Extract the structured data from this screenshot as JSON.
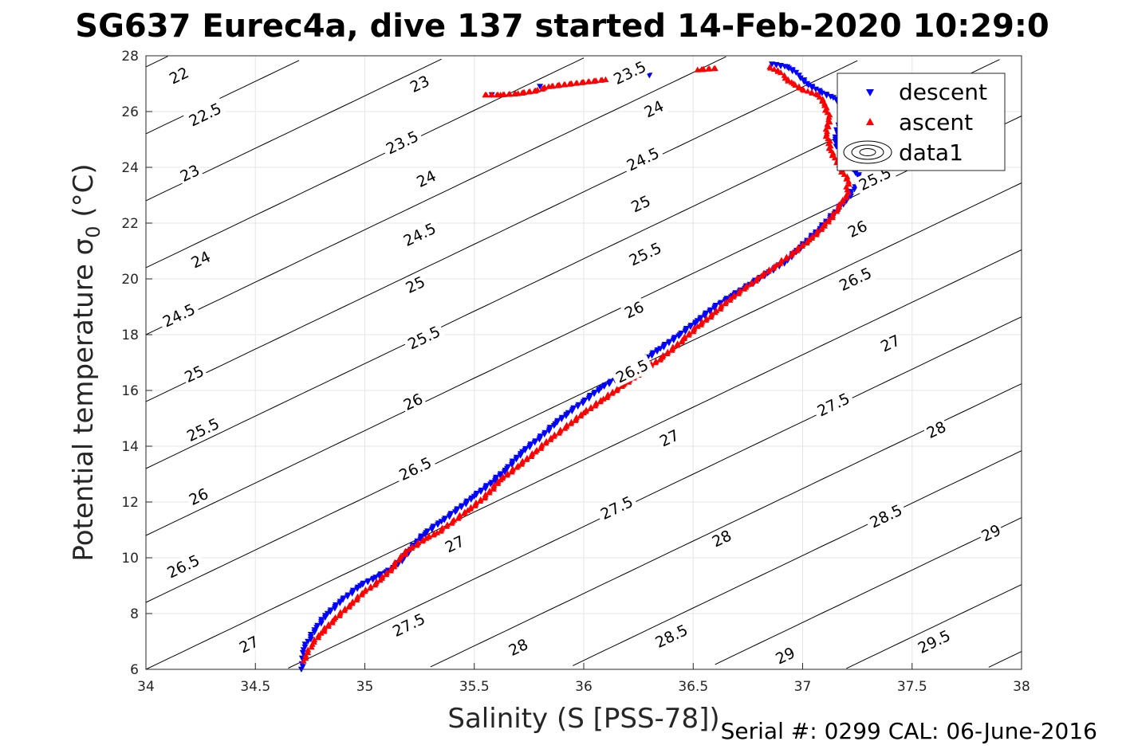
{
  "chart_data": {
    "type": "scatter",
    "title": "SG637 Eurec4a, dive 137 started 14-Feb-2020 10:29:0",
    "xlabel": "Salinity (S [PSS-78])",
    "ylabel_main": "Potential temperature ",
    "ylabel_sigma": "σ",
    "ylabel_sub": "0",
    "ylabel_unit": " (°C)",
    "xlim": [
      34,
      38
    ],
    "ylim": [
      6,
      28
    ],
    "xticks": [
      "34",
      "34.5",
      "35",
      "35.5",
      "36",
      "36.5",
      "37",
      "37.5",
      "38"
    ],
    "yticks": [
      "6",
      "8",
      "10",
      "12",
      "14",
      "16",
      "18",
      "20",
      "22",
      "24",
      "26",
      "28"
    ],
    "grid": true,
    "legend_position": "top-right",
    "colors": {
      "descent": "#0000ff",
      "ascent": "#ff0000",
      "contour": "#000000",
      "grid": "#e6e6e6"
    },
    "legend": [
      "descent",
      "ascent",
      "data1"
    ],
    "contours": [
      {
        "sigma": 22,
        "label": "22",
        "label_at": [
          34.15,
          27.3
        ]
      },
      {
        "sigma": 22.5,
        "label": "22.5",
        "label_at": [
          34.27,
          25.9
        ]
      },
      {
        "sigma": 23,
        "label": "23",
        "label_at": [
          34.2,
          23.8
        ]
      },
      {
        "sigma": 23,
        "label": "23",
        "label_at": [
          35.25,
          27.0
        ]
      },
      {
        "sigma": 23.5,
        "label": "23.5",
        "label_at": [
          35.17,
          24.9
        ]
      },
      {
        "sigma": 23.5,
        "label": "23.5",
        "label_at": [
          36.21,
          27.4
        ]
      },
      {
        "sigma": 24,
        "label": "24",
        "label_at": [
          34.25,
          20.7
        ]
      },
      {
        "sigma": 24,
        "label": "24",
        "label_at": [
          35.28,
          23.6
        ]
      },
      {
        "sigma": 24,
        "label": "24",
        "label_at": [
          36.32,
          26.1
        ]
      },
      {
        "sigma": 24.5,
        "label": "24.5",
        "label_at": [
          34.15,
          18.7
        ]
      },
      {
        "sigma": 24.5,
        "label": "24.5",
        "label_at": [
          35.25,
          21.6
        ]
      },
      {
        "sigma": 24.5,
        "label": "24.5",
        "label_at": [
          36.27,
          24.3
        ]
      },
      {
        "sigma": 25,
        "label": "25",
        "label_at": [
          34.22,
          16.6
        ]
      },
      {
        "sigma": 25,
        "label": "25",
        "label_at": [
          35.23,
          19.8
        ]
      },
      {
        "sigma": 25,
        "label": "25",
        "label_at": [
          36.26,
          22.7
        ]
      },
      {
        "sigma": 25.5,
        "label": "25.5",
        "label_at": [
          34.26,
          14.6
        ]
      },
      {
        "sigma": 25.5,
        "label": "25.5",
        "label_at": [
          35.27,
          17.9
        ]
      },
      {
        "sigma": 25.5,
        "label": "25.5",
        "label_at": [
          36.28,
          20.9
        ]
      },
      {
        "sigma": 25.5,
        "label": "25.5",
        "label_at": [
          37.33,
          23.6
        ]
      },
      {
        "sigma": 26,
        "label": "26",
        "label_at": [
          34.24,
          12.2
        ]
      },
      {
        "sigma": 26,
        "label": "26",
        "label_at": [
          35.22,
          15.6
        ]
      },
      {
        "sigma": 26,
        "label": "26",
        "label_at": [
          36.23,
          18.9
        ]
      },
      {
        "sigma": 26,
        "label": "26",
        "label_at": [
          37.25,
          21.8
        ]
      },
      {
        "sigma": 26.5,
        "label": "26.5",
        "label_at": [
          34.17,
          9.7
        ]
      },
      {
        "sigma": 26.5,
        "label": "26.5",
        "label_at": [
          35.23,
          13.2
        ]
      },
      {
        "sigma": 26.5,
        "label": "26.5",
        "label_at": [
          36.22,
          16.7
        ]
      },
      {
        "sigma": 26.5,
        "label": "26.5",
        "label_at": [
          37.24,
          20.0
        ]
      },
      {
        "sigma": 27,
        "label": "27",
        "label_at": [
          34.47,
          6.9
        ]
      },
      {
        "sigma": 27,
        "label": "27",
        "label_at": [
          35.41,
          10.5
        ]
      },
      {
        "sigma": 27,
        "label": "27",
        "label_at": [
          36.39,
          14.3
        ]
      },
      {
        "sigma": 27,
        "label": "27",
        "label_at": [
          37.4,
          17.7
        ]
      },
      {
        "sigma": 27.5,
        "label": "27.5",
        "label_at": [
          35.2,
          7.6
        ]
      },
      {
        "sigma": 27.5,
        "label": "27.5",
        "label_at": [
          36.15,
          11.8
        ]
      },
      {
        "sigma": 27.5,
        "label": "27.5",
        "label_at": [
          37.14,
          15.5
        ]
      },
      {
        "sigma": 28,
        "label": "28",
        "label_at": [
          35.7,
          6.8
        ]
      },
      {
        "sigma": 28,
        "label": "28",
        "label_at": [
          36.63,
          10.7
        ]
      },
      {
        "sigma": 28,
        "label": "28",
        "label_at": [
          37.61,
          14.6
        ]
      },
      {
        "sigma": 28.5,
        "label": "28.5",
        "label_at": [
          36.4,
          7.2
        ]
      },
      {
        "sigma": 28.5,
        "label": "28.5",
        "label_at": [
          37.38,
          11.5
        ]
      },
      {
        "sigma": 29,
        "label": "29",
        "label_at": [
          36.92,
          6.5
        ]
      },
      {
        "sigma": 29,
        "label": "29",
        "label_at": [
          37.86,
          10.9
        ]
      },
      {
        "sigma": 29.5,
        "label": "29.5",
        "label_at": [
          37.6,
          7.0
        ]
      }
    ],
    "series": [
      {
        "name": "descent",
        "marker": "triangle-down",
        "x": [
          34.71,
          34.72,
          34.72,
          34.74,
          34.78,
          34.83,
          34.9,
          34.98,
          35.05,
          35.1,
          35.14,
          35.18,
          35.21,
          35.24,
          35.28,
          35.35,
          35.42,
          35.5,
          35.58,
          35.65,
          35.72,
          35.8,
          35.87,
          35.93,
          36.0,
          36.08,
          36.17,
          36.26,
          36.35,
          36.44,
          36.52,
          36.6,
          36.68,
          36.76,
          36.84,
          36.92,
          37.0,
          37.08,
          37.15,
          37.2,
          37.24,
          37.27,
          37.22,
          37.17,
          37.15,
          37.17,
          37.19,
          37.14,
          37.08,
          37.02,
          36.99,
          36.97,
          36.93,
          36.86,
          35.58,
          35.8,
          36.3
        ],
        "y": [
          6.0,
          6.3,
          6.7,
          7.0,
          7.5,
          8.0,
          8.5,
          9.0,
          9.3,
          9.5,
          9.7,
          10.0,
          10.3,
          10.6,
          10.9,
          11.3,
          11.7,
          12.2,
          12.7,
          13.2,
          13.8,
          14.3,
          14.8,
          15.2,
          15.6,
          16.1,
          16.5,
          17.0,
          17.5,
          18.0,
          18.5,
          19.0,
          19.4,
          19.8,
          20.2,
          20.6,
          21.2,
          21.8,
          22.4,
          22.8,
          23.3,
          23.6,
          24.0,
          24.5,
          25.0,
          25.6,
          26.2,
          26.5,
          26.7,
          27.0,
          27.2,
          27.4,
          27.6,
          27.7,
          26.6,
          26.9,
          27.3
        ]
      },
      {
        "name": "ascent",
        "marker": "triangle-up",
        "x": [
          34.72,
          34.74,
          34.76,
          34.8,
          34.86,
          34.93,
          35.0,
          35.07,
          35.12,
          35.16,
          35.2,
          35.24,
          35.28,
          35.33,
          35.4,
          35.47,
          35.55,
          35.62,
          35.7,
          35.78,
          35.85,
          35.92,
          36.0,
          36.09,
          36.18,
          36.27,
          36.36,
          36.45,
          36.52,
          36.6,
          36.67,
          36.74,
          36.81,
          36.88,
          36.95,
          37.03,
          37.1,
          37.16,
          37.2,
          37.21,
          37.17,
          37.13,
          37.11,
          37.12,
          37.1,
          37.07,
          37.0,
          36.96,
          36.92,
          36.9,
          36.85,
          35.55,
          35.62,
          35.7,
          35.78,
          35.84,
          36.05,
          36.1,
          36.52,
          36.6
        ],
        "y": [
          6.3,
          6.6,
          6.9,
          7.3,
          7.8,
          8.3,
          8.8,
          9.2,
          9.6,
          10.0,
          10.3,
          10.5,
          10.7,
          10.9,
          11.3,
          11.7,
          12.2,
          12.8,
          13.3,
          13.8,
          14.3,
          14.7,
          15.2,
          15.7,
          16.2,
          16.7,
          17.2,
          17.8,
          18.3,
          18.8,
          19.3,
          19.7,
          20.1,
          20.5,
          20.9,
          21.4,
          21.9,
          22.5,
          23.0,
          23.5,
          24.0,
          24.6,
          25.2,
          25.8,
          26.3,
          26.6,
          26.8,
          27.0,
          27.2,
          27.4,
          27.6,
          26.6,
          26.6,
          26.65,
          26.75,
          26.9,
          27.1,
          27.15,
          27.5,
          27.55
        ]
      }
    ],
    "serial_text": "Serial #: 0299 CAL: 06-June-2016"
  }
}
